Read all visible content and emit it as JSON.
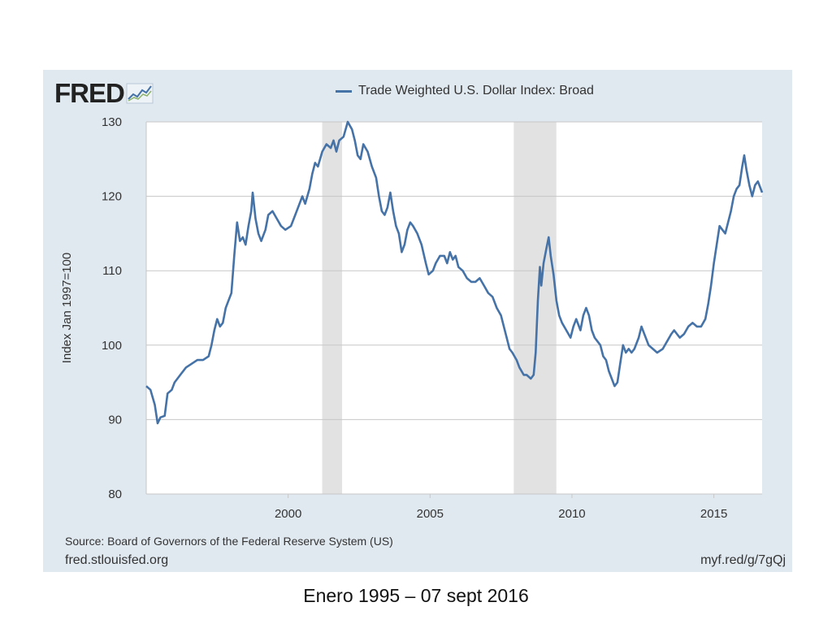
{
  "logo": {
    "text": "FRED"
  },
  "source": "Source: Board of Governors of the Federal Reserve System (US)",
  "site": "fred.stlouisfed.org",
  "short_link": "myf.red/g/7gQj",
  "caption": "Enero 1995 – 07 sept 2016",
  "colors": {
    "line": "#4572a7",
    "recession": "#e2e2e2",
    "panel": "#e1e9f0",
    "grid": "#c7c7c7"
  },
  "chart_data": {
    "type": "line",
    "title": "",
    "legend": "top-center",
    "grid": true,
    "xlabel": "",
    "ylabel": "Index Jan 1997=100",
    "xlim": [
      1995.0,
      2016.7
    ],
    "ylim": [
      80,
      130
    ],
    "x_ticks": [
      2000,
      2005,
      2010,
      2015
    ],
    "x_tick_labels": [
      "2000",
      "2005",
      "2010",
      "2015"
    ],
    "y_ticks": [
      80,
      90,
      100,
      110,
      120,
      130
    ],
    "y_tick_labels": [
      "80",
      "90",
      "100",
      "110",
      "120",
      "130"
    ],
    "recessions": [
      [
        2001.2,
        2001.9
      ],
      [
        2007.95,
        2009.45
      ]
    ],
    "series": [
      {
        "name": "Trade Weighted U.S. Dollar Index: Broad",
        "color": "#4572a7",
        "points": [
          [
            1995.0,
            94.5
          ],
          [
            1995.15,
            94.0
          ],
          [
            1995.3,
            92.0
          ],
          [
            1995.4,
            89.5
          ],
          [
            1995.5,
            90.3
          ],
          [
            1995.65,
            90.5
          ],
          [
            1995.75,
            93.5
          ],
          [
            1995.9,
            94.0
          ],
          [
            1996.0,
            95.0
          ],
          [
            1996.2,
            96.0
          ],
          [
            1996.4,
            97.0
          ],
          [
            1996.6,
            97.5
          ],
          [
            1996.8,
            98.0
          ],
          [
            1997.0,
            98.0
          ],
          [
            1997.2,
            98.5
          ],
          [
            1997.3,
            100.0
          ],
          [
            1997.4,
            102.0
          ],
          [
            1997.5,
            103.5
          ],
          [
            1997.6,
            102.5
          ],
          [
            1997.7,
            103.0
          ],
          [
            1997.8,
            105.0
          ],
          [
            1997.9,
            106.0
          ],
          [
            1998.0,
            107.0
          ],
          [
            1998.1,
            112.0
          ],
          [
            1998.2,
            116.5
          ],
          [
            1998.3,
            114.0
          ],
          [
            1998.4,
            114.5
          ],
          [
            1998.5,
            113.5
          ],
          [
            1998.6,
            116.0
          ],
          [
            1998.7,
            118.0
          ],
          [
            1998.75,
            120.5
          ],
          [
            1998.85,
            117.0
          ],
          [
            1998.95,
            115.0
          ],
          [
            1999.05,
            114.0
          ],
          [
            1999.2,
            115.5
          ],
          [
            1999.3,
            117.5
          ],
          [
            1999.45,
            118.0
          ],
          [
            1999.6,
            117.0
          ],
          [
            1999.75,
            116.0
          ],
          [
            1999.9,
            115.5
          ],
          [
            2000.1,
            116.0
          ],
          [
            2000.2,
            117.0
          ],
          [
            2000.35,
            118.5
          ],
          [
            2000.5,
            120.0
          ],
          [
            2000.6,
            119.0
          ],
          [
            2000.75,
            121.0
          ],
          [
            2000.85,
            123.0
          ],
          [
            2000.95,
            124.5
          ],
          [
            2001.05,
            124.0
          ],
          [
            2001.2,
            126.0
          ],
          [
            2001.35,
            127.0
          ],
          [
            2001.5,
            126.5
          ],
          [
            2001.6,
            127.5
          ],
          [
            2001.7,
            126.0
          ],
          [
            2001.8,
            127.5
          ],
          [
            2001.95,
            128.0
          ],
          [
            2002.1,
            130.0
          ],
          [
            2002.25,
            129.0
          ],
          [
            2002.35,
            127.5
          ],
          [
            2002.45,
            125.5
          ],
          [
            2002.55,
            125.0
          ],
          [
            2002.65,
            127.0
          ],
          [
            2002.8,
            126.0
          ],
          [
            2002.95,
            124.0
          ],
          [
            2003.1,
            122.5
          ],
          [
            2003.2,
            120.0
          ],
          [
            2003.3,
            118.0
          ],
          [
            2003.4,
            117.5
          ],
          [
            2003.5,
            118.5
          ],
          [
            2003.6,
            120.5
          ],
          [
            2003.7,
            118.0
          ],
          [
            2003.8,
            116.0
          ],
          [
            2003.9,
            115.0
          ],
          [
            2004.0,
            112.5
          ],
          [
            2004.1,
            113.5
          ],
          [
            2004.2,
            115.5
          ],
          [
            2004.3,
            116.5
          ],
          [
            2004.4,
            116.0
          ],
          [
            2004.55,
            115.0
          ],
          [
            2004.7,
            113.5
          ],
          [
            2004.85,
            111.0
          ],
          [
            2004.95,
            109.5
          ],
          [
            2005.1,
            110.0
          ],
          [
            2005.2,
            111.0
          ],
          [
            2005.35,
            112.0
          ],
          [
            2005.5,
            112.0
          ],
          [
            2005.6,
            111.0
          ],
          [
            2005.7,
            112.5
          ],
          [
            2005.8,
            111.5
          ],
          [
            2005.9,
            112.0
          ],
          [
            2006.0,
            110.5
          ],
          [
            2006.15,
            110.0
          ],
          [
            2006.3,
            109.0
          ],
          [
            2006.45,
            108.5
          ],
          [
            2006.6,
            108.5
          ],
          [
            2006.75,
            109.0
          ],
          [
            2006.9,
            108.0
          ],
          [
            2007.05,
            107.0
          ],
          [
            2007.2,
            106.5
          ],
          [
            2007.35,
            105.0
          ],
          [
            2007.5,
            104.0
          ],
          [
            2007.6,
            102.5
          ],
          [
            2007.7,
            101.0
          ],
          [
            2007.8,
            99.5
          ],
          [
            2007.9,
            99.0
          ],
          [
            2008.05,
            98.0
          ],
          [
            2008.15,
            97.0
          ],
          [
            2008.3,
            96.0
          ],
          [
            2008.4,
            96.0
          ],
          [
            2008.55,
            95.5
          ],
          [
            2008.65,
            96.0
          ],
          [
            2008.72,
            99.0
          ],
          [
            2008.8,
            106.0
          ],
          [
            2008.87,
            110.5
          ],
          [
            2008.92,
            108.0
          ],
          [
            2009.0,
            111.0
          ],
          [
            2009.1,
            113.0
          ],
          [
            2009.18,
            114.5
          ],
          [
            2009.25,
            112.0
          ],
          [
            2009.35,
            109.5
          ],
          [
            2009.45,
            106.0
          ],
          [
            2009.55,
            104.0
          ],
          [
            2009.65,
            103.0
          ],
          [
            2009.8,
            102.0
          ],
          [
            2009.95,
            101.0
          ],
          [
            2010.05,
            102.5
          ],
          [
            2010.15,
            103.5
          ],
          [
            2010.3,
            102.0
          ],
          [
            2010.4,
            104.0
          ],
          [
            2010.5,
            105.0
          ],
          [
            2010.6,
            104.0
          ],
          [
            2010.7,
            102.0
          ],
          [
            2010.8,
            101.0
          ],
          [
            2010.9,
            100.5
          ],
          [
            2011.0,
            100.0
          ],
          [
            2011.1,
            98.5
          ],
          [
            2011.2,
            98.0
          ],
          [
            2011.3,
            96.5
          ],
          [
            2011.4,
            95.5
          ],
          [
            2011.5,
            94.5
          ],
          [
            2011.6,
            95.0
          ],
          [
            2011.7,
            97.5
          ],
          [
            2011.8,
            100.0
          ],
          [
            2011.9,
            99.0
          ],
          [
            2012.0,
            99.5
          ],
          [
            2012.1,
            99.0
          ],
          [
            2012.2,
            99.5
          ],
          [
            2012.35,
            101.0
          ],
          [
            2012.45,
            102.5
          ],
          [
            2012.55,
            101.5
          ],
          [
            2012.7,
            100.0
          ],
          [
            2012.85,
            99.5
          ],
          [
            2013.0,
            99.0
          ],
          [
            2013.2,
            99.5
          ],
          [
            2013.35,
            100.5
          ],
          [
            2013.5,
            101.5
          ],
          [
            2013.6,
            102.0
          ],
          [
            2013.7,
            101.5
          ],
          [
            2013.8,
            101.0
          ],
          [
            2013.95,
            101.5
          ],
          [
            2014.1,
            102.5
          ],
          [
            2014.25,
            103.0
          ],
          [
            2014.4,
            102.5
          ],
          [
            2014.55,
            102.5
          ],
          [
            2014.7,
            103.5
          ],
          [
            2014.8,
            105.5
          ],
          [
            2014.9,
            108.0
          ],
          [
            2015.0,
            111.0
          ],
          [
            2015.1,
            113.5
          ],
          [
            2015.2,
            116.0
          ],
          [
            2015.3,
            115.5
          ],
          [
            2015.4,
            115.0
          ],
          [
            2015.5,
            116.5
          ],
          [
            2015.6,
            118.0
          ],
          [
            2015.7,
            120.0
          ],
          [
            2015.8,
            121.0
          ],
          [
            2015.9,
            121.5
          ],
          [
            2016.0,
            124.0
          ],
          [
            2016.07,
            125.5
          ],
          [
            2016.15,
            123.5
          ],
          [
            2016.25,
            121.5
          ],
          [
            2016.35,
            120.0
          ],
          [
            2016.45,
            121.5
          ],
          [
            2016.55,
            122.0
          ],
          [
            2016.65,
            121.0
          ],
          [
            2016.7,
            120.5
          ]
        ]
      }
    ]
  }
}
